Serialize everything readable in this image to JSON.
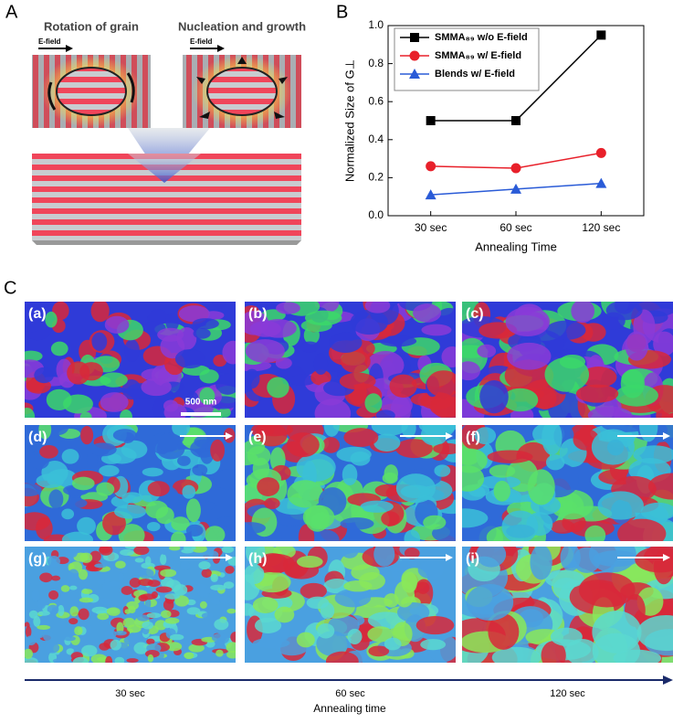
{
  "panel_a": {
    "label": "A",
    "left_title": "Rotation of grain",
    "right_title": "Nucleation and growth",
    "field_left": "E-field",
    "field_right": "E-field"
  },
  "chart_data": {
    "type": "line",
    "panel_label": "B",
    "categories": [
      "30 sec",
      "60 sec",
      "120 sec"
    ],
    "series": [
      {
        "name": "SMMA₈₉ w/o E-field",
        "color": "#000000",
        "marker": "square",
        "values": [
          0.5,
          0.5,
          0.95
        ]
      },
      {
        "name": "SMMA₈₉ w/ E-field",
        "color": "#e8202a",
        "marker": "circle",
        "values": [
          0.26,
          0.25,
          0.33
        ]
      },
      {
        "name": "Blends w/ E-field",
        "color": "#2a5bd7",
        "marker": "triangle",
        "values": [
          0.11,
          0.14,
          0.17
        ]
      }
    ],
    "ylim": [
      0,
      1
    ],
    "yticks": [
      {
        "value": 0,
        "label": "0.0"
      },
      {
        "value": 0.2,
        "label": "0.2"
      },
      {
        "value": 0.4,
        "label": "0.4"
      },
      {
        "value": 0.6,
        "label": "0.6"
      },
      {
        "value": 0.8,
        "label": "0.8"
      },
      {
        "value": 1,
        "label": "1.0"
      }
    ],
    "ylabel": "Normalized Size of G⊥",
    "xlabel": "Annealing Time",
    "legend": "upper left"
  },
  "panel_c": {
    "label": "C",
    "images": [
      {
        "label": "(a)"
      },
      {
        "label": "(b)"
      },
      {
        "label": "(c)"
      },
      {
        "label": "(d)"
      },
      {
        "label": "(e)"
      },
      {
        "label": "(f)"
      },
      {
        "label": "(g)"
      },
      {
        "label": "(h)"
      },
      {
        "label": "(i)"
      }
    ],
    "scale_bar": "500 nm",
    "times": [
      "30 sec",
      "60 sec",
      "120 sec"
    ],
    "axis_label": "Annealing time"
  }
}
